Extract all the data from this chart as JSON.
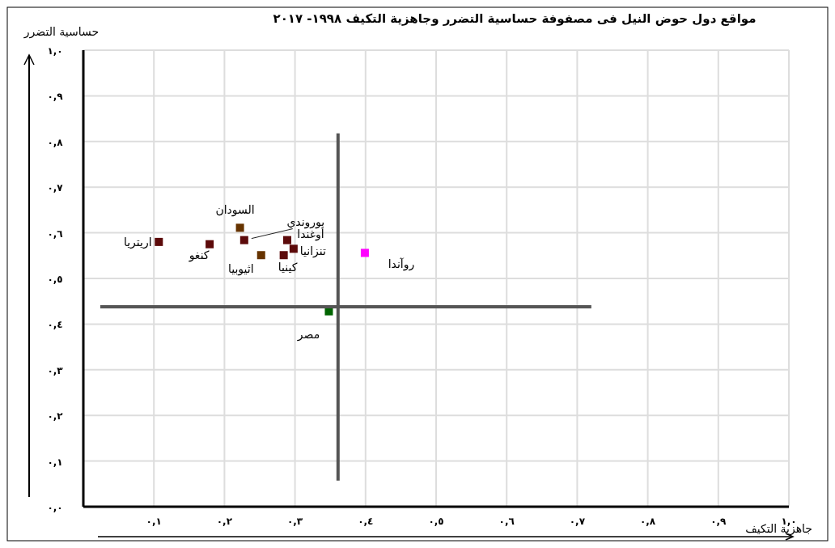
{
  "chart_data": {
    "type": "scatter",
    "title": "مواقع دول حوض النيل فى مصفوفة حساسية التضرر وجاهزية التكيف ١٩٩٨- ٢٠١٧",
    "xlabel": "جاهزية التكيف",
    "ylabel": "حساسية التضرر",
    "xlim": [
      0,
      1
    ],
    "ylim": [
      0,
      1
    ],
    "xticks": [
      {
        "value": 0.1,
        "label": "٠,١"
      },
      {
        "value": 0.2,
        "label": "٠,٢"
      },
      {
        "value": 0.3,
        "label": "٠,٣"
      },
      {
        "value": 0.4,
        "label": "٠,٤"
      },
      {
        "value": 0.5,
        "label": "٠,٥"
      },
      {
        "value": 0.6,
        "label": "٠,٦"
      },
      {
        "value": 0.7,
        "label": "٠,٧"
      },
      {
        "value": 0.8,
        "label": "٠,٨"
      },
      {
        "value": 0.9,
        "label": "٠,٩"
      },
      {
        "value": 1,
        "label": "١,٠"
      }
    ],
    "yticks": [
      {
        "value": 0,
        "label": "٠,٠"
      },
      {
        "value": 0.1,
        "label": "٠,١"
      },
      {
        "value": 0.2,
        "label": "٠,٢"
      },
      {
        "value": 0.3,
        "label": "٠,٣"
      },
      {
        "value": 0.4,
        "label": "٠,٤"
      },
      {
        "value": 0.5,
        "label": "٠,٥"
      },
      {
        "value": 0.6,
        "label": "٠,٦"
      },
      {
        "value": 0.7,
        "label": "٠,٧"
      },
      {
        "value": 0.8,
        "label": "٠,٨"
      },
      {
        "value": 0.9,
        "label": "٠,٩"
      },
      {
        "value": 1,
        "label": "١,٠"
      }
    ],
    "grid": true,
    "marker": "square",
    "series": [
      {
        "name": "اريتريا",
        "color": "#5c0a0a",
        "x": [
          0.107
        ],
        "values": [
          0.58
        ]
      },
      {
        "name": "كنغو",
        "color": "#5c0a0a",
        "x": [
          0.179
        ],
        "values": [
          0.575
        ]
      },
      {
        "name": "السودان",
        "color": "#663300",
        "x": [
          0.222
        ],
        "values": [
          0.611
        ]
      },
      {
        "name": "بوروندي",
        "color": "#5c0a0a",
        "x": [
          0.228
        ],
        "values": [
          0.584
        ]
      },
      {
        "name": "اثيوبيا",
        "color": "#663300",
        "x": [
          0.252
        ],
        "values": [
          0.551
        ]
      },
      {
        "name": "كينيا",
        "color": "#5c0a0a",
        "x": [
          0.284
        ],
        "values": [
          0.551
        ]
      },
      {
        "name": "أوغندا",
        "color": "#5c0a0a",
        "x": [
          0.289
        ],
        "values": [
          0.584
        ]
      },
      {
        "name": "تنزانيا",
        "color": "#5c0a0a",
        "x": [
          0.298
        ],
        "values": [
          0.565
        ]
      },
      {
        "name": "روآندا",
        "color": "#ff00ff",
        "x": [
          0.399
        ],
        "values": [
          0.556
        ]
      },
      {
        "name": "مصر",
        "color": "#006400",
        "x": [
          0.348
        ],
        "values": [
          0.428
        ]
      },
      {
        "type": "line",
        "marker": "none",
        "color": "#555555",
        "x": [
          0.361,
          0.361
        ],
        "values": [
          0.057,
          0.818
        ]
      },
      {
        "type": "line",
        "marker": "none",
        "color": "#555555",
        "x": [
          0.024,
          0.72
        ],
        "values": [
          0.438,
          0.438
        ]
      }
    ]
  }
}
